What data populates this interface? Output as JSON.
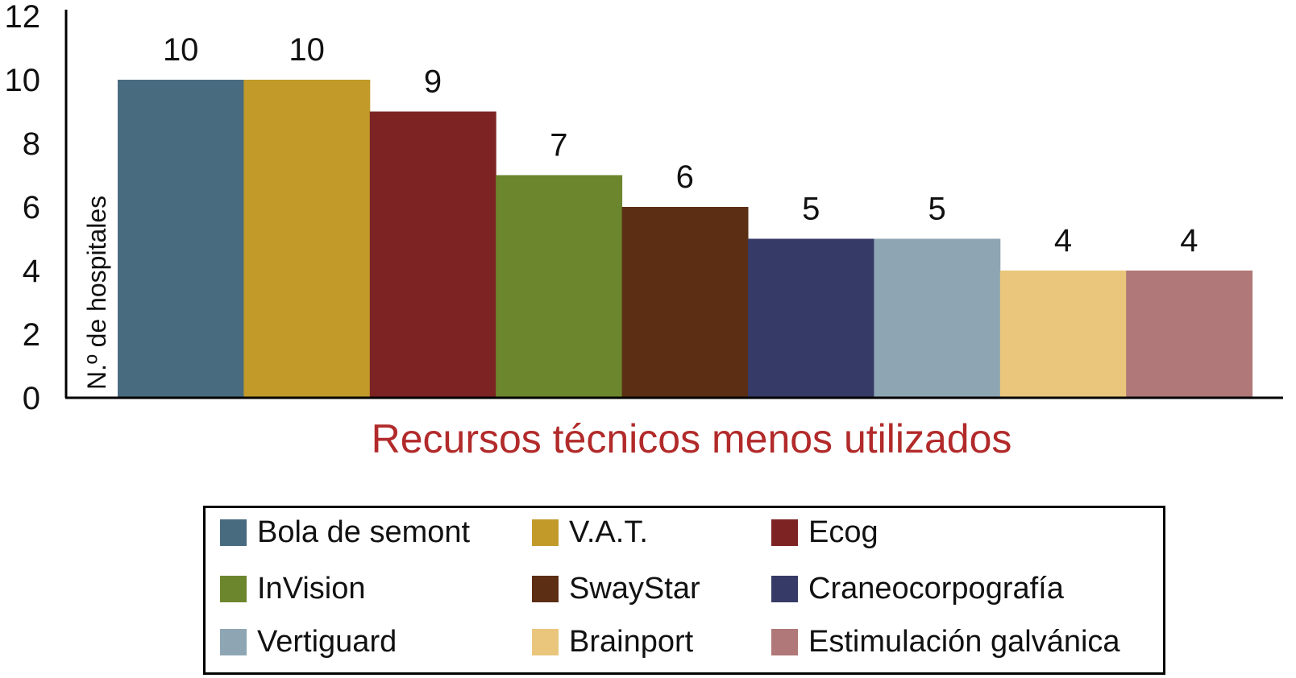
{
  "chart_data": {
    "type": "bar",
    "title": "",
    "xlabel": "Recursos técnicos menos utilizados",
    "ylabel": "N.º de hospitales",
    "ylim": [
      0,
      12
    ],
    "yticks": [
      "0",
      "2",
      "4",
      "6",
      "8",
      "10",
      "12"
    ],
    "categories": [
      "Bola de semont",
      "V.A.T.",
      "Ecog",
      "InVision",
      "SwayStar",
      "Craneocorpografía",
      "Vertiguard",
      "Brainport",
      "Estimulación galvánica"
    ],
    "values": [
      10,
      10,
      9,
      7,
      6,
      5,
      5,
      4,
      4
    ],
    "data_labels": [
      "10",
      "10",
      "9",
      "7",
      "6",
      "5",
      "5",
      "4",
      "4"
    ],
    "colors": [
      "#486b80",
      "#c19a2a",
      "#7d2324",
      "#6c862e",
      "#5c2e14",
      "#363a66",
      "#8ea6b3",
      "#e9c67c",
      "#b07878"
    ],
    "xlabel_color": "#b22a2a",
    "legend_position": "bottom",
    "grid": false
  }
}
